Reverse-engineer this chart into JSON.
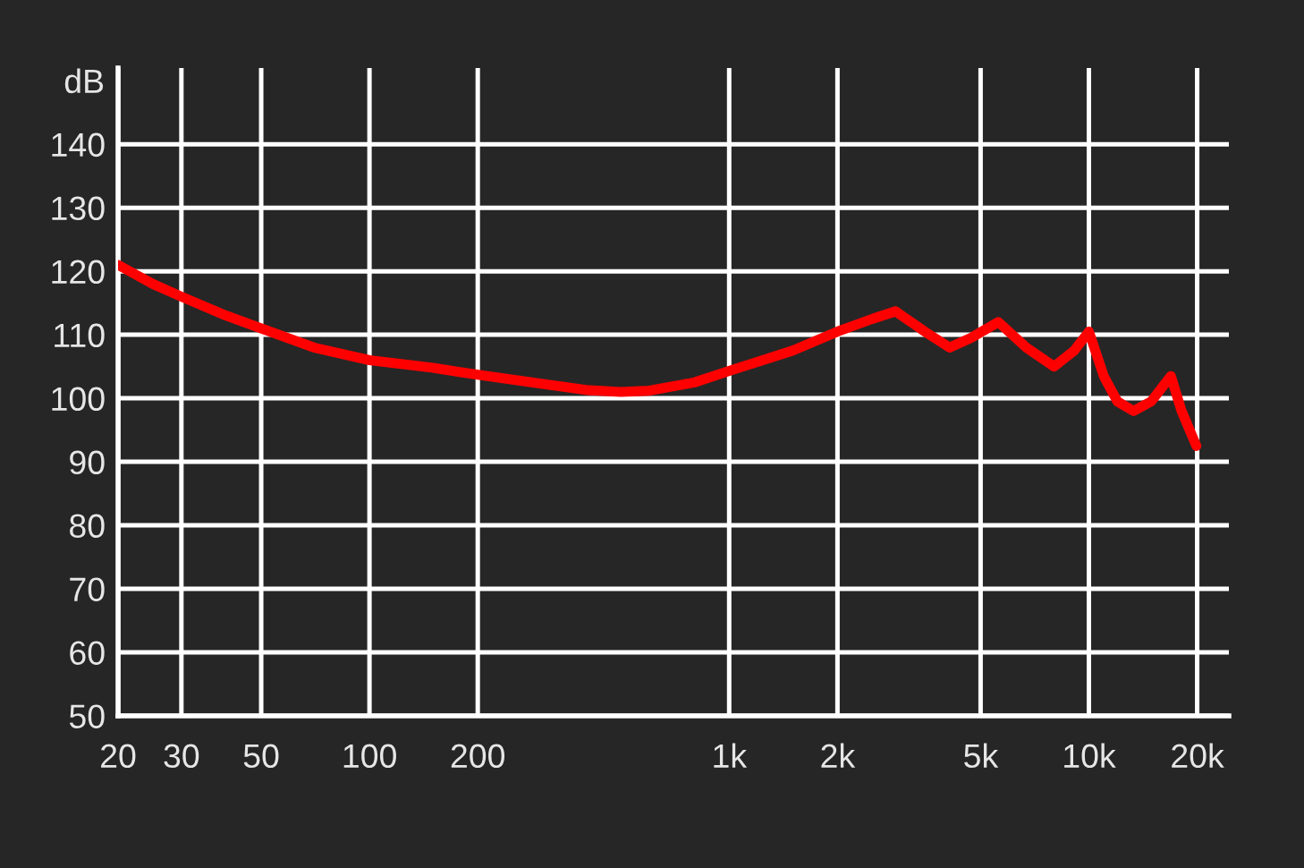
{
  "chart_data": {
    "type": "line",
    "ylabel": "dB",
    "x": [
      20,
      25,
      30,
      40,
      50,
      70,
      100,
      150,
      200,
      300,
      400,
      500,
      600,
      800,
      1000,
      1500,
      2000,
      2500,
      2900,
      3500,
      4100,
      4700,
      5600,
      6700,
      8000,
      9100,
      10000,
      11000,
      12000,
      13300,
      14900,
      16900,
      18100,
      19900
    ],
    "series": [
      {
        "color": "#ff0000",
        "values": [
          121,
          118,
          116,
          113,
          111,
          108,
          106,
          104.8,
          103.7,
          102.3,
          101.3,
          101,
          101.2,
          102.5,
          104.3,
          107.5,
          110.5,
          112.5,
          113.7,
          110.5,
          108,
          109.5,
          112,
          108,
          105,
          107.5,
          110.5,
          103.5,
          99.5,
          98,
          99.5,
          103.5,
          98,
          92.5
        ]
      }
    ],
    "log": "x",
    "xlim": [
      20,
      24500
    ],
    "xticks": [
      20,
      30,
      50,
      100,
      200,
      {
        "value": 1000,
        "label": "1k"
      },
      {
        "value": 2000,
        "label": "2k"
      },
      {
        "value": 5000,
        "label": "5k"
      },
      {
        "value": 10000,
        "label": "10k"
      },
      {
        "value": 20000,
        "label": "20k"
      }
    ],
    "ylim": [
      50,
      152
    ],
    "yticks": [
      50,
      60,
      70,
      80,
      90,
      100,
      110,
      120,
      130,
      140
    ],
    "grid": true,
    "line_style": "solid"
  }
}
